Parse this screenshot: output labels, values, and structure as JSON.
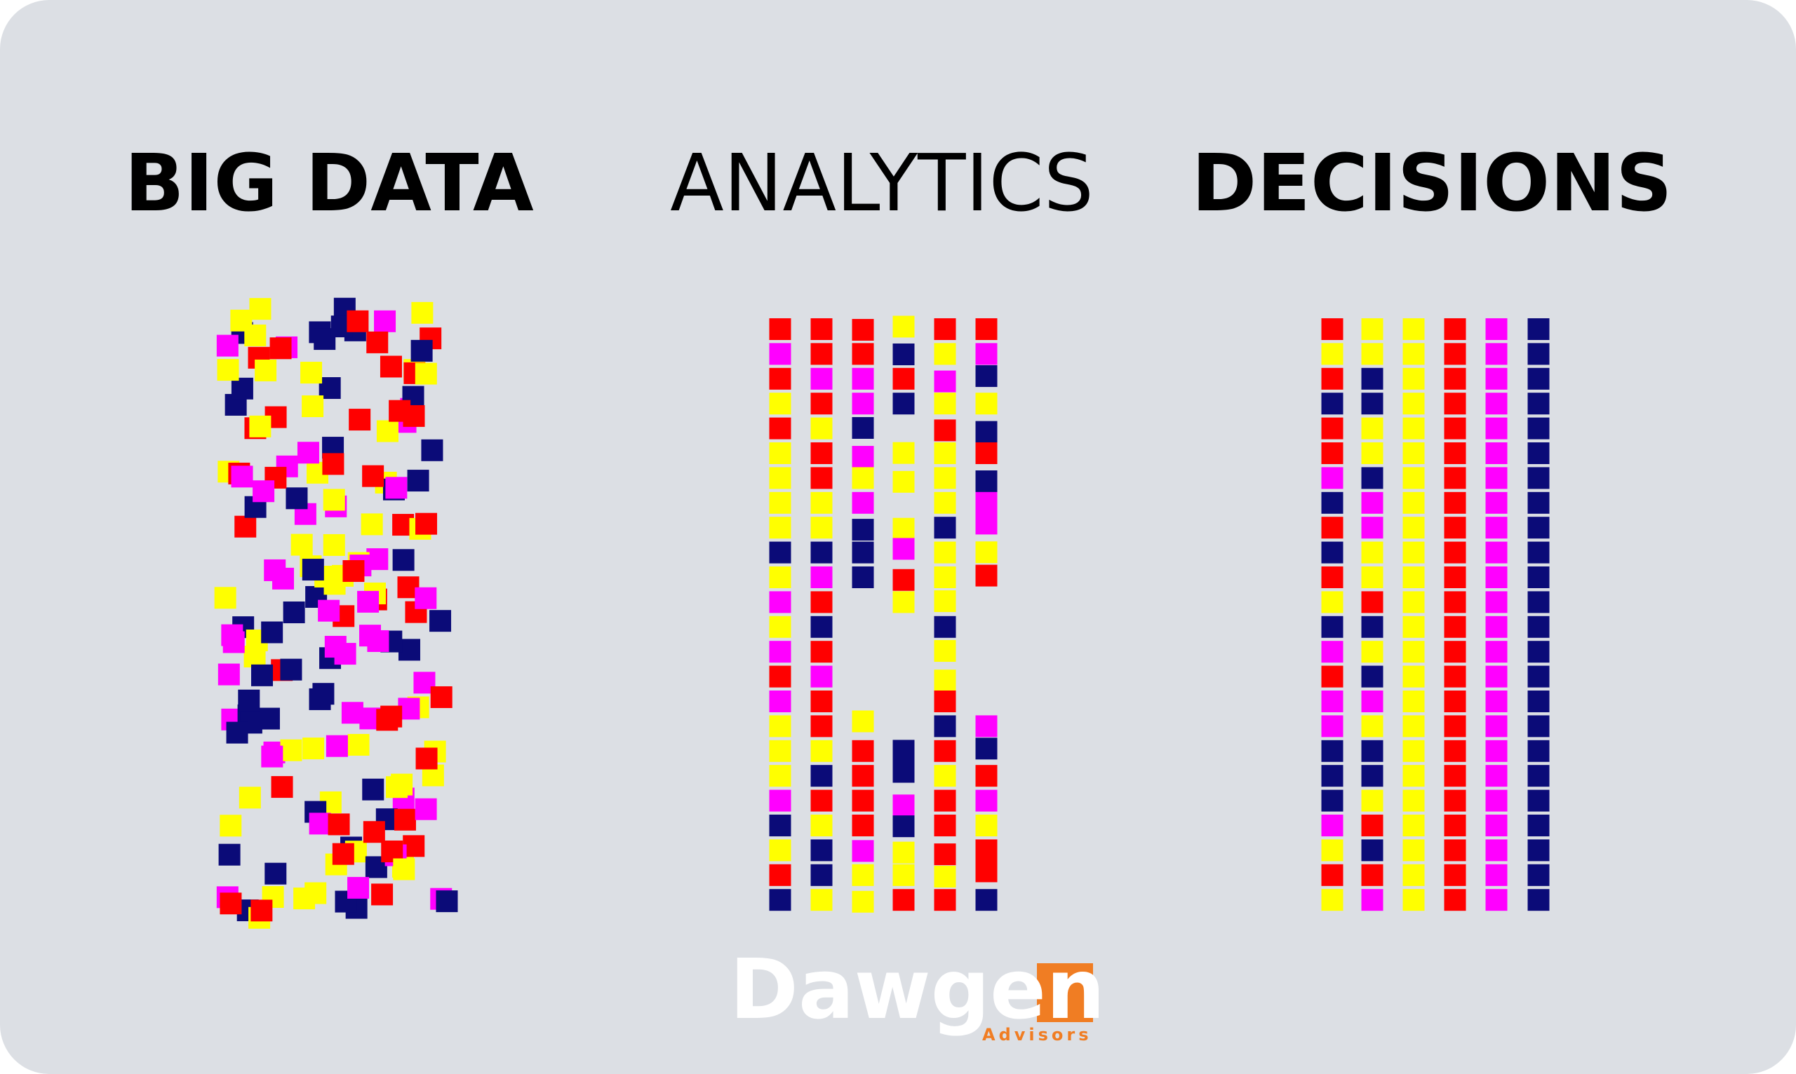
{
  "titles": {
    "big_data": "BIG DATA",
    "analytics": "ANALYTICS",
    "decisions": "DECISIONS"
  },
  "logo": {
    "name": "Dawgen",
    "tagline": "Advisors"
  }
}
